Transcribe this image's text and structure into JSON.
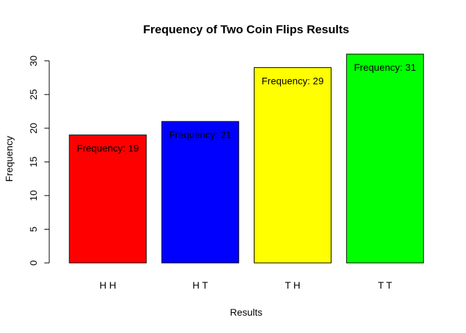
{
  "chart_data": {
    "type": "bar",
    "title": "Frequency of Two Coin Flips Results",
    "xlabel": "Results",
    "ylabel": "Frequency",
    "categories": [
      "H H",
      "H T",
      "T H",
      "T T"
    ],
    "values": [
      19,
      21,
      29,
      31
    ],
    "data_labels": [
      "Frequency: 19",
      "Frequency: 21",
      "Frequency: 29",
      "Frequency: 31"
    ],
    "colors": [
      "#ff0000",
      "#0000ff",
      "#ffff00",
      "#00ff00"
    ],
    "ylim": [
      0,
      31
    ],
    "yticks": [
      0,
      5,
      10,
      15,
      20,
      25,
      30
    ],
    "grid": false,
    "legend": "none"
  }
}
